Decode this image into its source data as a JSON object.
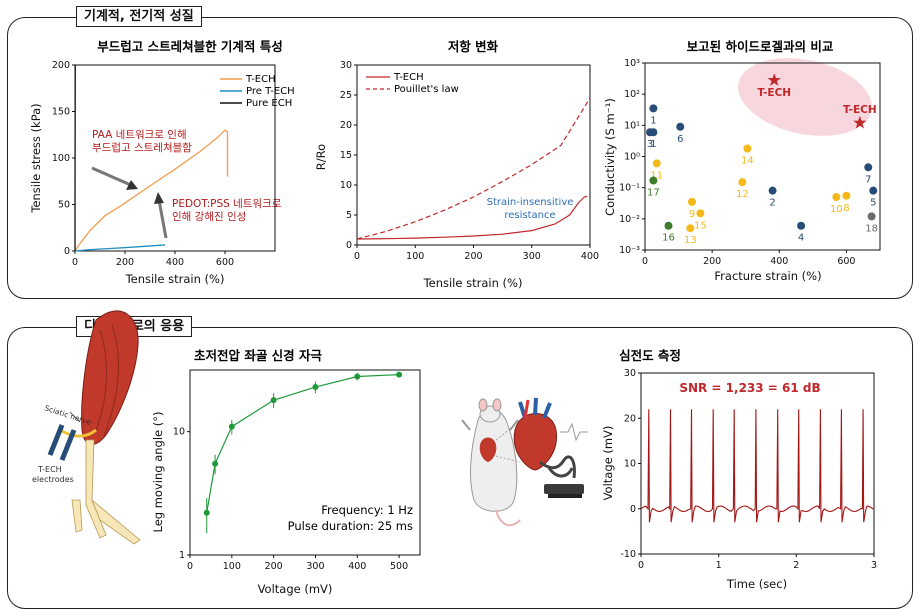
{
  "sections": {
    "top": {
      "label": "기계적, 전기적 성질"
    },
    "bottom": {
      "label": "디바이스로의 응용"
    }
  },
  "colors": {
    "orange": "#f39c4d",
    "blue": "#1f8fc1",
    "black": "#111111",
    "red": "#c0282c",
    "navy": "#274c77",
    "yellow": "#f4b916",
    "green": "#3d7d2b",
    "gray": "#6b6b6b",
    "pink": "#f7d7dd",
    "dkred": "#b31c1c",
    "lgreen": "#1f9a3a"
  },
  "chart_data": [
    {
      "type": "line",
      "title": "부드럽고 스트레쳐블한 기계적 특성",
      "xlabel": "Tensile strain (%)",
      "ylabel": "Tensile stress (kPa)",
      "xlim": [
        0,
        800
      ],
      "ylim": [
        0,
        200
      ],
      "xticks": [
        "0",
        "200",
        "400",
        "600"
      ],
      "yticks": [
        "0",
        "50",
        "100",
        "150",
        "200"
      ],
      "legend": [
        "T-ECH",
        "Pre T-ECH",
        "Pure ECH"
      ],
      "series": [
        {
          "name": "T-ECH",
          "color": "orange",
          "points": [
            [
              0,
              0
            ],
            [
              20,
              8
            ],
            [
              60,
              22
            ],
            [
              120,
              38
            ],
            [
              180,
              48
            ],
            [
              300,
              70
            ],
            [
              400,
              88
            ],
            [
              500,
              107
            ],
            [
              570,
              122
            ],
            [
              600,
              130
            ],
            [
              610,
              128
            ],
            [
              610,
              80
            ]
          ]
        },
        {
          "name": "Pre T-ECH",
          "color": "blue",
          "points": [
            [
              0,
              0
            ],
            [
              60,
              1.5
            ],
            [
              150,
              2.8
            ],
            [
              250,
              4.5
            ],
            [
              330,
              6
            ],
            [
              360,
              6.5
            ]
          ]
        },
        {
          "name": "Pure ECH",
          "color": "black",
          "points": [
            [
              0,
              0
            ],
            [
              0,
              45
            ],
            [
              1,
              200
            ],
            [
              2,
              200
            ]
          ]
        }
      ],
      "annotations": [
        {
          "lines": [
            "PAA 네트워크로 인해",
            "부드럽고 스트레쳐블함"
          ],
          "color": "dkred"
        },
        {
          "lines": [
            "PEDOT:PSS 네트워크로",
            "인해 강해진 인성"
          ],
          "color": "dkred"
        }
      ]
    },
    {
      "type": "line",
      "title": "저항 변화",
      "xlabel": "Tensile strain (%)",
      "ylabel": "R/Ro",
      "xlim": [
        0,
        400
      ],
      "ylim": [
        0,
        30
      ],
      "xticks": [
        "0",
        "100",
        "200",
        "300",
        "400"
      ],
      "yticks": [
        "0",
        "5",
        "10",
        "15",
        "20",
        "25",
        "30"
      ],
      "legend": [
        "T-ECH",
        "Pouillet's law"
      ],
      "series": [
        {
          "name": "T-ECH",
          "style": "solid",
          "points": [
            [
              0,
              1
            ],
            [
              50,
              1.05
            ],
            [
              100,
              1.15
            ],
            [
              150,
              1.3
            ],
            [
              200,
              1.5
            ],
            [
              250,
              1.8
            ],
            [
              300,
              2.4
            ],
            [
              340,
              3.5
            ],
            [
              365,
              5
            ],
            [
              380,
              7
            ],
            [
              390,
              8
            ],
            [
              395,
              8.1
            ]
          ]
        },
        {
          "name": "Pouillet's law",
          "style": "dashed",
          "points": [
            [
              0,
              1
            ],
            [
              50,
              2.27
            ],
            [
              100,
              3.87
            ],
            [
              150,
              5.8
            ],
            [
              200,
              8
            ],
            [
              250,
              10.6
            ],
            [
              300,
              13.4
            ],
            [
              350,
              16.6
            ],
            [
              400,
              24.5
            ]
          ]
        }
      ],
      "annotations": [
        {
          "lines": [
            "Strain-insensitive",
            "resistance"
          ],
          "color": "#2d6fb6"
        }
      ]
    },
    {
      "type": "scatter",
      "title": "보고된 하이드로겔과의 비교",
      "xlabel": "Fracture strain (%)",
      "ylabel": "Conductivity (S m⁻¹)",
      "xlim": [
        0,
        700
      ],
      "ylim_log": [
        -3,
        3
      ],
      "xticks": [
        "0",
        "200",
        "400",
        "600"
      ],
      "yticks": [
        "10⁻³",
        "10⁻²",
        "10⁻¹",
        "10⁰",
        "10¹",
        "10²",
        "10³"
      ],
      "points": [
        {
          "label": "1",
          "x": 25,
          "y": 35,
          "color": "navy"
        },
        {
          "label": "1",
          "x": 25,
          "y": 6,
          "color": "navy"
        },
        {
          "label": "3",
          "x": 15,
          "y": 6,
          "color": "navy"
        },
        {
          "label": "6",
          "x": 105,
          "y": 9,
          "color": "navy"
        },
        {
          "label": "2",
          "x": 380,
          "y": 0.08,
          "color": "navy"
        },
        {
          "label": "4",
          "x": 465,
          "y": 0.006,
          "color": "navy"
        },
        {
          "label": "7",
          "x": 665,
          "y": 0.45,
          "color": "navy"
        },
        {
          "label": "5",
          "x": 680,
          "y": 0.08,
          "color": "navy"
        },
        {
          "label": "11",
          "x": 35,
          "y": 0.6,
          "color": "yellow"
        },
        {
          "label": "14",
          "x": 305,
          "y": 1.8,
          "color": "yellow"
        },
        {
          "label": "12",
          "x": 290,
          "y": 0.15,
          "color": "yellow"
        },
        {
          "label": "9",
          "x": 140,
          "y": 0.035,
          "color": "yellow"
        },
        {
          "label": "15",
          "x": 165,
          "y": 0.015,
          "color": "yellow"
        },
        {
          "label": "13",
          "x": 135,
          "y": 0.005,
          "color": "yellow"
        },
        {
          "label": "10",
          "x": 570,
          "y": 0.05,
          "color": "yellow"
        },
        {
          "label": "8",
          "x": 600,
          "y": 0.055,
          "color": "yellow"
        },
        {
          "label": "17",
          "x": 25,
          "y": 0.17,
          "color": "green"
        },
        {
          "label": "16",
          "x": 70,
          "y": 0.006,
          "color": "green"
        },
        {
          "label": "18",
          "x": 675,
          "y": 0.012,
          "color": "gray"
        }
      ],
      "stars": [
        {
          "label": "T-ECH",
          "x": 385,
          "y": 280
        },
        {
          "label": "T-ECH",
          "x": 640,
          "y": 12
        }
      ]
    },
    {
      "type": "line",
      "title": "초저전압 좌골 신경 자극",
      "xlabel": "Voltage (mV)",
      "ylabel": "Leg moving angle (°)",
      "xlim": [
        0,
        550
      ],
      "ylim_log": [
        0,
        1.5
      ],
      "xticks": [
        "0",
        "100",
        "200",
        "300",
        "400",
        "500"
      ],
      "yticks": [
        "1",
        "10"
      ],
      "points": [
        [
          40,
          2.2,
          0.7
        ],
        [
          60,
          5.5,
          1.0
        ],
        [
          100,
          11,
          1.5
        ],
        [
          200,
          18,
          2.5
        ],
        [
          300,
          23,
          2.5
        ],
        [
          400,
          28,
          2
        ],
        [
          500,
          29,
          1.5
        ]
      ],
      "notes": [
        "Frequency: 1 Hz",
        "Pulse duration: 25 ms"
      ]
    },
    {
      "type": "line",
      "title": "심전도 측정",
      "xlabel": "Time (sec)",
      "ylabel": "Voltage (mV)",
      "xlim": [
        0,
        3
      ],
      "ylim": [
        -10,
        30
      ],
      "xticks": [
        "0",
        "1",
        "2",
        "3"
      ],
      "yticks": [
        "-10",
        "0",
        "10",
        "20",
        "30"
      ],
      "beat_times": [
        0.1,
        0.38,
        0.65,
        0.93,
        1.2,
        1.48,
        1.76,
        2.03,
        2.31,
        2.58,
        2.86
      ],
      "peak_mV": 22,
      "trough_mV": -3,
      "annotation": "SNR = 1,233 = 61 dB"
    }
  ],
  "illustrations": {
    "sciatic_label": "Sciatic nerve",
    "electrode_label": [
      "T-ECH",
      "electrodes"
    ]
  }
}
